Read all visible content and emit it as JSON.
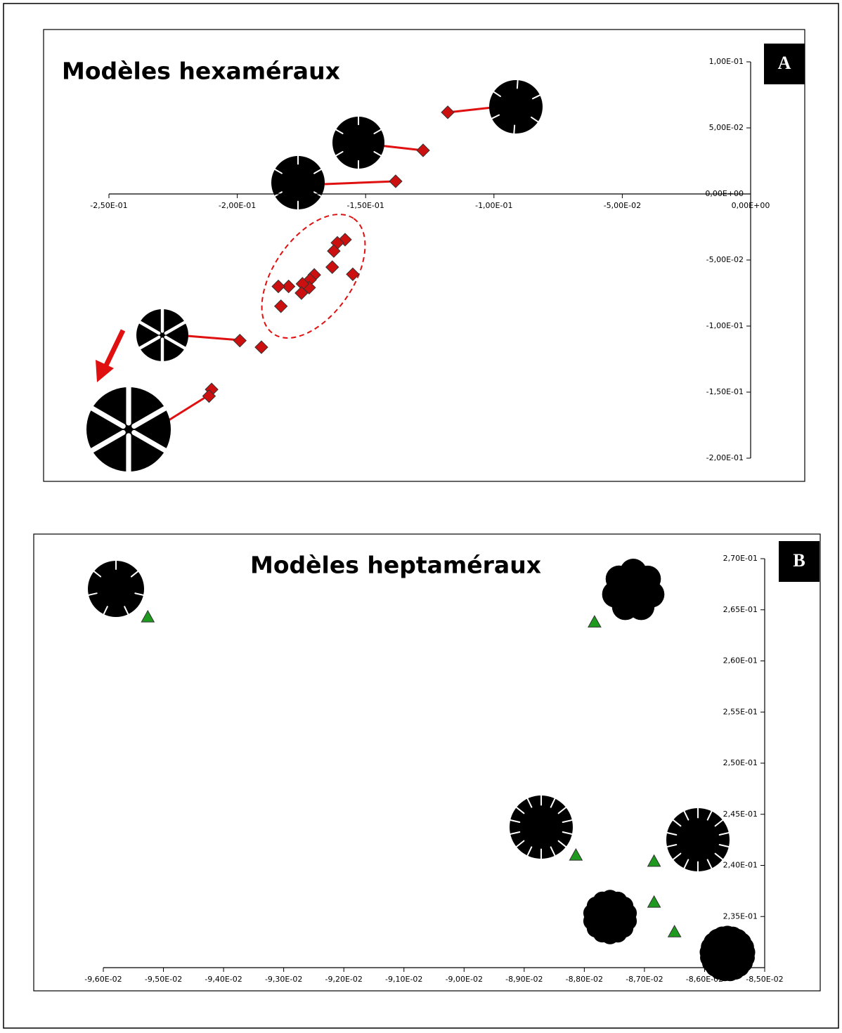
{
  "chart_data": [
    {
      "type": "scatter",
      "title": "Modèles hexaméraux",
      "panel": "A",
      "marker": "diamond",
      "color": "#cc1010",
      "x": [
        -0.118,
        -0.1276,
        -0.1383,
        -0.158,
        -0.161,
        -0.1624,
        -0.163,
        -0.155,
        -0.17,
        -0.1717,
        -0.172,
        -0.1746,
        -0.175,
        -0.18,
        -0.184,
        -0.183,
        -0.199,
        -0.1906,
        -0.21,
        -0.211
      ],
      "values": [
        0.0618,
        0.033,
        0.0096,
        -0.0346,
        -0.037,
        -0.0432,
        -0.0554,
        -0.0608,
        -0.0613,
        -0.065,
        -0.0709,
        -0.068,
        -0.075,
        -0.07,
        -0.07,
        -0.085,
        -0.111,
        -0.116,
        -0.148,
        -0.153
      ],
      "xlim": [
        -0.25,
        0
      ],
      "ylim": [
        -0.2,
        0.1
      ],
      "xticks": [
        {
          "value": -0.25,
          "label": "-2,50E-01"
        },
        {
          "value": -0.2,
          "label": "-2,00E-01"
        },
        {
          "value": -0.15,
          "label": "-1,50E-01"
        },
        {
          "value": -0.1,
          "label": "-1,00E-01"
        },
        {
          "value": -0.05,
          "label": "-5,00E-02"
        },
        {
          "value": 0,
          "label": "0,00E+00"
        }
      ],
      "yticks": [
        {
          "value": -0.2,
          "label": "-2,00E-01"
        },
        {
          "value": -0.15,
          "label": "-1,50E-01"
        },
        {
          "value": -0.1,
          "label": "-1,00E-01"
        },
        {
          "value": -0.05,
          "label": "-5,00E-02"
        },
        {
          "value": 0,
          "label": "0,00E+00"
        },
        {
          "value": 0.05,
          "label": "5,00E-02"
        },
        {
          "value": 0.1,
          "label": "1,00E-01"
        }
      ]
    },
    {
      "type": "scatter",
      "title": "Modèles heptaméraux",
      "panel": "B",
      "marker": "triangle",
      "color": "#1e9a1e",
      "x": [
        -0.09526,
        -0.08783,
        -0.08814,
        -0.08684,
        -0.08684,
        -0.0865
      ],
      "values": [
        0.2643,
        0.2638,
        0.241,
        0.2404,
        0.2364,
        0.2335
      ],
      "xlim": [
        -0.096,
        -0.085
      ],
      "ylim": [
        0.23,
        0.27
      ],
      "xticks": [
        {
          "value": -0.096,
          "label": "-9,60E-02"
        },
        {
          "value": -0.095,
          "label": "-9,50E-02"
        },
        {
          "value": -0.094,
          "label": "-9,40E-02"
        },
        {
          "value": -0.093,
          "label": "-9,30E-02"
        },
        {
          "value": -0.092,
          "label": "-9,20E-02"
        },
        {
          "value": -0.091,
          "label": "-9,10E-02"
        },
        {
          "value": -0.09,
          "label": "-9,00E-02"
        },
        {
          "value": -0.089,
          "label": "-8,90E-02"
        },
        {
          "value": -0.088,
          "label": "-8,80E-02"
        },
        {
          "value": -0.087,
          "label": "-8,70E-02"
        },
        {
          "value": -0.086,
          "label": "-8,60E-02"
        },
        {
          "value": -0.085,
          "label": "-8,50E-02"
        }
      ],
      "yticks": [
        {
          "value": 0.235,
          "label": "2,35E-01"
        },
        {
          "value": 0.24,
          "label": "2,40E-01"
        },
        {
          "value": 0.245,
          "label": "2,45E-01"
        },
        {
          "value": 0.25,
          "label": "2,50E-01"
        },
        {
          "value": 0.255,
          "label": "2,55E-01"
        },
        {
          "value": 0.26,
          "label": "2,60E-01"
        },
        {
          "value": 0.265,
          "label": "2,65E-01"
        },
        {
          "value": 0.27,
          "label": "2,70E-01"
        }
      ]
    }
  ]
}
